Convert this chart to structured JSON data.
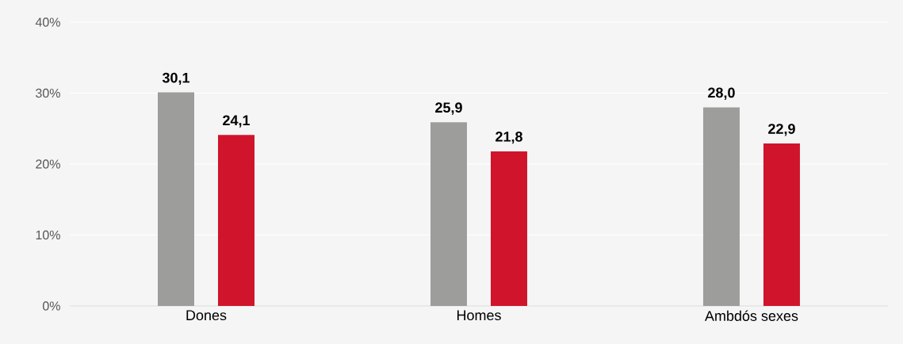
{
  "chart_data": {
    "type": "bar",
    "categories": [
      "Dones",
      "Homes",
      "Ambdós sexes"
    ],
    "series": [
      {
        "color": "#9d9d9b",
        "values": [
          30.1,
          25.9,
          28.0
        ],
        "value_labels": [
          "30,1",
          "25,9",
          "28,0"
        ]
      },
      {
        "color": "#d0142c",
        "values": [
          24.1,
          21.8,
          22.9
        ],
        "value_labels": [
          "24,1",
          "21,8",
          "22,9"
        ]
      }
    ],
    "ylim": [
      0,
      40
    ],
    "yticks": [
      {
        "value": 0,
        "label": "0%"
      },
      {
        "value": 10,
        "label": "10%"
      },
      {
        "value": 20,
        "label": "20%"
      },
      {
        "value": 30,
        "label": "30%"
      },
      {
        "value": 40,
        "label": "40%"
      }
    ],
    "grid": "y"
  }
}
